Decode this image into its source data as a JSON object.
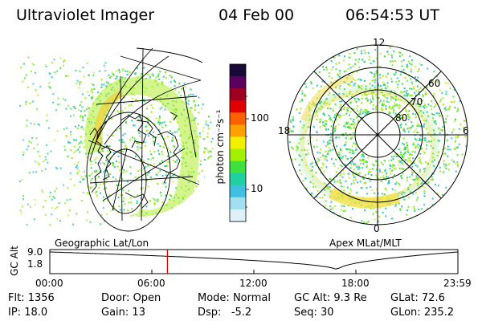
{
  "header": {
    "title": "Ultraviolet Imager",
    "date": "04 Feb 00",
    "time": "06:54:53 UT"
  },
  "colorbar": {
    "label": "photon cm⁻²s⁻¹",
    "ticks": [
      "100",
      "10"
    ],
    "colors": [
      "#1a0a3a",
      "#5a0060",
      "#a00020",
      "#e00000",
      "#ff6000",
      "#ffa000",
      "#f0f000",
      "#a0f000",
      "#40e040",
      "#20d0a0",
      "#40c0e0",
      "#a0e0f0",
      "#e0f0f8"
    ]
  },
  "left_panel": {
    "label": "Geographic Lat/Lon"
  },
  "right_panel": {
    "label": "Apex MLat/MLT",
    "ring_labels": [
      "60",
      "70",
      "80"
    ],
    "mlt_labels": {
      "top": "12",
      "left": "18",
      "right": "6",
      "bottom": "0"
    }
  },
  "altitude_plot": {
    "ylabel": "GC Alt",
    "yticks": [
      "9.0",
      "1.8"
    ],
    "xticks": [
      "00:00",
      "06:00",
      "12:00",
      "18:00",
      "23:59"
    ],
    "marker_time_hours": 6.915
  },
  "footer": {
    "row1": [
      {
        "key": "Flt:",
        "value": "1356"
      },
      {
        "key": "Door:",
        "value": "Open"
      },
      {
        "key": "Mode:",
        "value": "Normal"
      },
      {
        "key": "GC Alt:",
        "value": "9.3 Re"
      },
      {
        "key": "GLat:",
        "value": "72.6"
      }
    ],
    "row2": [
      {
        "key": "IP:",
        "value": "18.0"
      },
      {
        "key": "Gain:",
        "value": "13"
      },
      {
        "key": "Dsp:",
        "value": "-5.2"
      },
      {
        "key": "Seq:",
        "value": "30"
      },
      {
        "key": "GLon:",
        "value": "235.2"
      }
    ]
  }
}
